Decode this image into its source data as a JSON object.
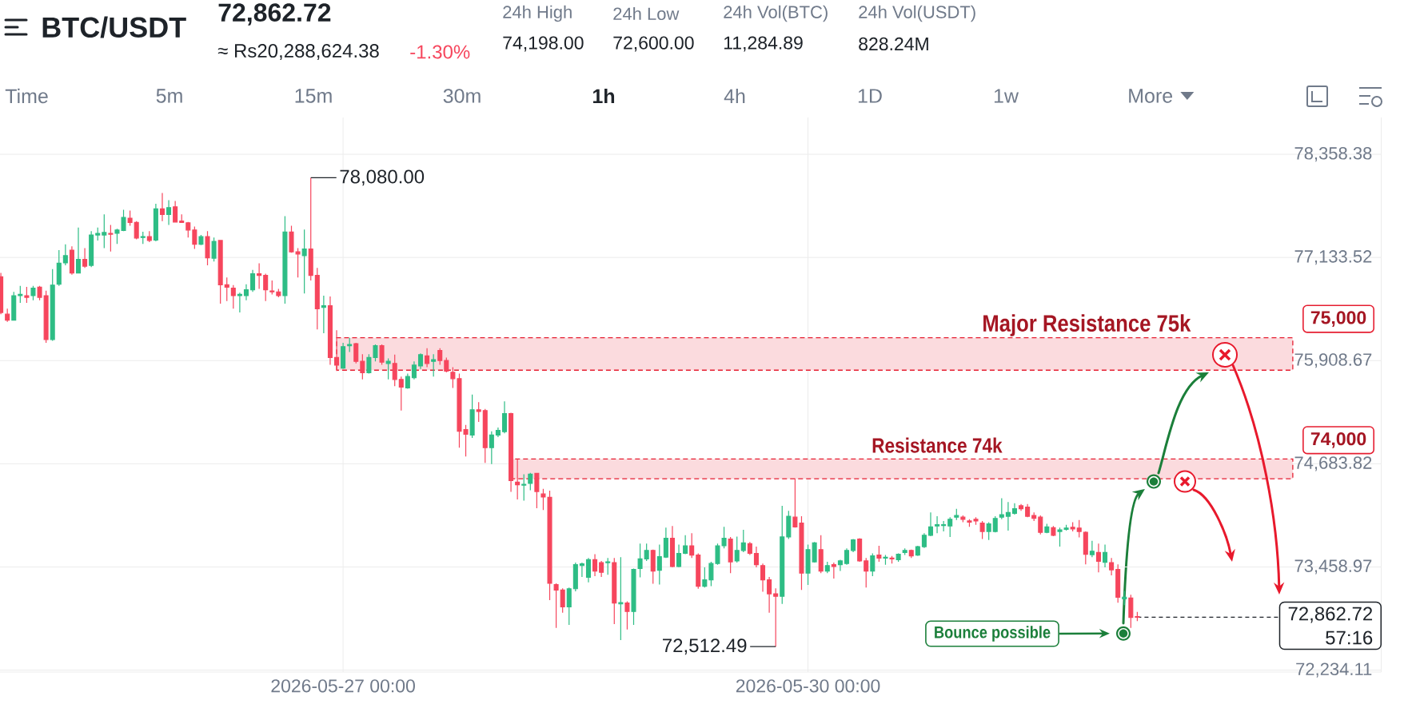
{
  "chart_data": {
    "type": "candlestick",
    "title": "BTC/USDT",
    "x": [
      "2026-05-24T19:00",
      "2026-05-24T20:00",
      "2026-05-24T21:00",
      "2026-05-24T22:00",
      "2026-05-24T23:00",
      "2026-05-25T00:00",
      "2026-05-25T01:00",
      "2026-05-25T02:00",
      "2026-05-25T03:00",
      "2026-05-25T04:00",
      "2026-05-25T05:00",
      "2026-05-25T06:00",
      "2026-05-25T07:00",
      "2026-05-25T08:00",
      "2026-05-25T09:00",
      "2026-05-25T10:00",
      "2026-05-25T11:00",
      "2026-05-25T12:00",
      "2026-05-25T13:00",
      "2026-05-25T14:00",
      "2026-05-25T15:00",
      "2026-05-25T16:00",
      "2026-05-25T17:00",
      "2026-05-25T18:00",
      "2026-05-25T19:00",
      "2026-05-25T20:00",
      "2026-05-25T21:00",
      "2026-05-25T22:00",
      "2026-05-25T23:00",
      "2026-05-26T00:00",
      "2026-05-26T01:00",
      "2026-05-26T02:00",
      "2026-05-26T03:00",
      "2026-05-26T04:00",
      "2026-05-26T05:00",
      "2026-05-26T06:00",
      "2026-05-26T07:00",
      "2026-05-26T08:00",
      "2026-05-26T09:00",
      "2026-05-26T10:00",
      "2026-05-26T11:00",
      "2026-05-26T12:00",
      "2026-05-26T13:00",
      "2026-05-26T14:00",
      "2026-05-26T15:00",
      "2026-05-26T16:00",
      "2026-05-26T17:00",
      "2026-05-26T18:00",
      "2026-05-26T19:00",
      "2026-05-26T20:00",
      "2026-05-26T21:00",
      "2026-05-26T22:00",
      "2026-05-26T23:00",
      "2026-05-27T00:00",
      "2026-05-27T01:00",
      "2026-05-27T02:00",
      "2026-05-27T03:00",
      "2026-05-27T04:00",
      "2026-05-27T05:00",
      "2026-05-27T06:00",
      "2026-05-27T07:00",
      "2026-05-27T08:00",
      "2026-05-27T09:00",
      "2026-05-27T10:00",
      "2026-05-27T11:00",
      "2026-05-27T12:00",
      "2026-05-27T13:00",
      "2026-05-27T14:00",
      "2026-05-27T15:00",
      "2026-05-27T16:00",
      "2026-05-27T17:00",
      "2026-05-27T18:00",
      "2026-05-27T19:00",
      "2026-05-27T20:00",
      "2026-05-27T21:00",
      "2026-05-27T22:00",
      "2026-05-27T23:00",
      "2026-05-28T00:00",
      "2026-05-28T01:00",
      "2026-05-28T02:00",
      "2026-05-28T03:00",
      "2026-05-28T04:00",
      "2026-05-28T05:00",
      "2026-05-28T06:00",
      "2026-05-28T07:00",
      "2026-05-28T08:00",
      "2026-05-28T09:00",
      "2026-05-28T10:00",
      "2026-05-28T11:00",
      "2026-05-28T12:00",
      "2026-05-28T13:00",
      "2026-05-28T14:00",
      "2026-05-28T15:00",
      "2026-05-28T16:00",
      "2026-05-28T17:00",
      "2026-05-28T18:00",
      "2026-05-28T19:00",
      "2026-05-28T20:00",
      "2026-05-28T21:00",
      "2026-05-28T22:00",
      "2026-05-28T23:00",
      "2026-05-29T00:00",
      "2026-05-29T01:00",
      "2026-05-29T02:00",
      "2026-05-29T03:00",
      "2026-05-29T04:00",
      "2026-05-29T05:00",
      "2026-05-29T06:00",
      "2026-05-29T07:00",
      "2026-05-29T08:00",
      "2026-05-29T09:00",
      "2026-05-29T10:00",
      "2026-05-29T11:00",
      "2026-05-29T12:00",
      "2026-05-29T13:00",
      "2026-05-29T14:00",
      "2026-05-29T15:00",
      "2026-05-29T16:00",
      "2026-05-29T17:00",
      "2026-05-29T18:00",
      "2026-05-29T19:00",
      "2026-05-29T20:00",
      "2026-05-29T21:00",
      "2026-05-29T22:00",
      "2026-05-29T23:00",
      "2026-05-30T00:00",
      "2026-05-30T01:00",
      "2026-05-30T02:00",
      "2026-05-30T03:00",
      "2026-05-30T04:00",
      "2026-05-30T05:00",
      "2026-05-30T06:00",
      "2026-05-30T07:00",
      "2026-05-30T08:00",
      "2026-05-30T09:00",
      "2026-05-30T10:00",
      "2026-05-30T11:00",
      "2026-05-30T12:00",
      "2026-05-30T13:00",
      "2026-05-30T14:00",
      "2026-05-30T15:00",
      "2026-05-30T16:00",
      "2026-05-30T17:00",
      "2026-05-30T18:00",
      "2026-05-30T19:00",
      "2026-05-30T20:00",
      "2026-05-30T21:00",
      "2026-05-30T22:00",
      "2026-05-30T23:00",
      "2026-05-31T00:00",
      "2026-05-31T01:00",
      "2026-05-31T02:00",
      "2026-05-31T03:00",
      "2026-05-31T04:00",
      "2026-05-31T05:00",
      "2026-05-31T06:00",
      "2026-05-31T07:00",
      "2026-05-31T08:00",
      "2026-05-31T09:00",
      "2026-05-31T10:00",
      "2026-05-31T11:00",
      "2026-05-31T12:00",
      "2026-05-31T13:00",
      "2026-05-31T14:00",
      "2026-05-31T15:00",
      "2026-05-31T16:00",
      "2026-05-31T17:00",
      "2026-05-31T18:00",
      "2026-05-31T19:00",
      "2026-05-31T20:00",
      "2026-05-31T21:00",
      "2026-05-31T22:00",
      "2026-05-31T23:00",
      "2026-06-01T00:00",
      "2026-06-01T01:00",
      "2026-06-01T02:00",
      "2026-06-01T03:00"
    ],
    "ohlc": [
      [
        76905,
        76950,
        76460,
        76480
      ],
      [
        76460,
        76525,
        76370,
        76390
      ],
      [
        76390,
        76725,
        76390,
        76680
      ],
      [
        76680,
        76795,
        76595,
        76695
      ],
      [
        76680,
        76785,
        76595,
        76660
      ],
      [
        76680,
        76795,
        76625,
        76770
      ],
      [
        76780,
        76795,
        76625,
        76660
      ],
      [
        76680,
        76740,
        76120,
        76160
      ],
      [
        76160,
        76995,
        76145,
        76805
      ],
      [
        76815,
        77220,
        76795,
        77065
      ],
      [
        77070,
        77290,
        77040,
        77155
      ],
      [
        77220,
        77265,
        76930,
        76950
      ],
      [
        76950,
        77490,
        76950,
        77110
      ],
      [
        77110,
        77245,
        77010,
        77030
      ],
      [
        77040,
        77445,
        77020,
        77400
      ],
      [
        77400,
        77490,
        77335,
        77420
      ],
      [
        77400,
        77645,
        77245,
        77430
      ],
      [
        77420,
        77520,
        77205,
        77410
      ],
      [
        77420,
        77475,
        77295,
        77460
      ],
      [
        77455,
        77700,
        77445,
        77610
      ],
      [
        77600,
        77690,
        77510,
        77550
      ],
      [
        77550,
        77565,
        77350,
        77365
      ],
      [
        77370,
        77440,
        77295,
        77380
      ],
      [
        77380,
        77445,
        77315,
        77335
      ],
      [
        77340,
        77770,
        77325,
        77710
      ],
      [
        77710,
        77900,
        77565,
        77645
      ],
      [
        77645,
        77815,
        77520,
        77725
      ],
      [
        77735,
        77805,
        77555,
        77555
      ],
      [
        77565,
        77645,
        77550,
        77550
      ],
      [
        77545,
        77555,
        77370,
        77460
      ],
      [
        77460,
        77500,
        77235,
        77290
      ],
      [
        77290,
        77400,
        77280,
        77380
      ],
      [
        77380,
        77445,
        77040,
        77130
      ],
      [
        77125,
        77370,
        77085,
        77325
      ],
      [
        77335,
        77340,
        76585,
        76810
      ],
      [
        76810,
        76895,
        76615,
        76780
      ],
      [
        76770,
        76805,
        76525,
        76680
      ],
      [
        76680,
        76715,
        76480,
        76695
      ],
      [
        76680,
        76815,
        76625,
        76750
      ],
      [
        76750,
        76985,
        76725,
        76940
      ],
      [
        76940,
        77065,
        76760,
        76920
      ],
      [
        76920,
        76940,
        76615,
        76750
      ],
      [
        76735,
        76860,
        76695,
        76725
      ],
      [
        76725,
        76760,
        76660,
        76680
      ],
      [
        76680,
        77625,
        76585,
        77435
      ],
      [
        77435,
        77510,
        77190,
        77200
      ],
      [
        77200,
        77245,
        76895,
        77175
      ],
      [
        77155,
        77465,
        76705,
        77235
      ],
      [
        77235,
        78080,
        76860,
        76920
      ],
      [
        76920,
        77010,
        76280,
        76525
      ],
      [
        76540,
        76680,
        76235,
        76560
      ],
      [
        76560,
        76670,
        75860,
        75945
      ],
      [
        75945,
        76270,
        75785,
        75855
      ],
      [
        75820,
        76120,
        75810,
        76075
      ],
      [
        76085,
        76180,
        76010,
        76100
      ],
      [
        76110,
        76120,
        75875,
        75900
      ],
      [
        75900,
        75985,
        75685,
        75765
      ],
      [
        75765,
        75985,
        75755,
        75945
      ],
      [
        75945,
        76100,
        75900,
        76085
      ],
      [
        76085,
        76100,
        75860,
        75890
      ],
      [
        75875,
        75935,
        75685,
        75900
      ],
      [
        75875,
        75980,
        75605,
        75685
      ],
      [
        75685,
        75720,
        75315,
        75595
      ],
      [
        75585,
        75755,
        75575,
        75720
      ],
      [
        75705,
        75900,
        75685,
        75855
      ],
      [
        75845,
        75995,
        75810,
        75980
      ],
      [
        75965,
        76055,
        75830,
        75875
      ],
      [
        75900,
        75985,
        75720,
        75920
      ],
      [
        76030,
        76055,
        75860,
        75910
      ],
      [
        75910,
        75945,
        75770,
        75785
      ],
      [
        75770,
        75830,
        75585,
        75695
      ],
      [
        75695,
        75755,
        74875,
        75070
      ],
      [
        75090,
        75145,
        74770,
        75035
      ],
      [
        75025,
        75505,
        74990,
        75325
      ],
      [
        75325,
        75415,
        75180,
        75305
      ],
      [
        75315,
        75335,
        74695,
        74875
      ],
      [
        74875,
        75070,
        74680,
        75025
      ],
      [
        75025,
        75115,
        75000,
        75080
      ],
      [
        75065,
        75425,
        75045,
        75280
      ],
      [
        75280,
        75290,
        74350,
        74485
      ],
      [
        74465,
        74740,
        74260,
        74435
      ],
      [
        74430,
        74560,
        74245,
        74440
      ],
      [
        74450,
        74575,
        74370,
        74560
      ],
      [
        74570,
        74575,
        74155,
        74355
      ],
      [
        74325,
        74385,
        74135,
        74290
      ],
      [
        74285,
        74365,
        73065,
        73265
      ],
      [
        73250,
        73265,
        72735,
        73185
      ],
      [
        73185,
        73205,
        72915,
        72985
      ],
      [
        72985,
        73215,
        72770,
        73200
      ],
      [
        73200,
        73510,
        73170,
        73485
      ],
      [
        73475,
        73510,
        73340,
        73495
      ],
      [
        73335,
        73565,
        73275,
        73545
      ],
      [
        73545,
        73610,
        73350,
        73410
      ],
      [
        73510,
        73530,
        73340,
        73395
      ],
      [
        73510,
        73565,
        73365,
        73520
      ],
      [
        73510,
        73565,
        72780,
        73030
      ],
      [
        73020,
        73575,
        72590,
        73035
      ],
      [
        73030,
        73050,
        72715,
        72930
      ],
      [
        72930,
        73440,
        72770,
        73430
      ],
      [
        73440,
        73735,
        73335,
        73555
      ],
      [
        73555,
        73735,
        73530,
        73655
      ],
      [
        73655,
        73665,
        73260,
        73410
      ],
      [
        73420,
        73725,
        73250,
        73580
      ],
      [
        73575,
        73925,
        73565,
        73800
      ],
      [
        73800,
        73945,
        73455,
        73465
      ],
      [
        73465,
        73725,
        73455,
        73620
      ],
      [
        73620,
        73835,
        73610,
        73710
      ],
      [
        73710,
        73860,
        73565,
        73600
      ],
      [
        73600,
        73620,
        73200,
        73230
      ],
      [
        73230,
        73455,
        73215,
        73305
      ],
      [
        73305,
        73520,
        73230,
        73500
      ],
      [
        73500,
        73735,
        73485,
        73710
      ],
      [
        73710,
        73935,
        73680,
        73800
      ],
      [
        73790,
        73815,
        73385,
        73520
      ],
      [
        73530,
        73820,
        73510,
        73655
      ],
      [
        73655,
        73900,
        73635,
        73745
      ],
      [
        73735,
        73755,
        73600,
        73620
      ],
      [
        73620,
        73700,
        73455,
        73485
      ],
      [
        73475,
        73500,
        73165,
        73305
      ],
      [
        73305,
        73340,
        72915,
        73140
      ],
      [
        73140,
        73205,
        72512.49,
        73110
      ],
      [
        73110,
        74185,
        73020,
        73815
      ],
      [
        73815,
        74125,
        73790,
        74060
      ],
      [
        74050,
        74510,
        73925,
        73935
      ],
      [
        73980,
        74060,
        73185,
        73385
      ],
      [
        73385,
        73725,
        73245,
        73665
      ],
      [
        73520,
        73755,
        73510,
        73745
      ],
      [
        73665,
        73835,
        73385,
        73410
      ],
      [
        73410,
        73520,
        73385,
        73475
      ],
      [
        73485,
        73510,
        73320,
        73465
      ],
      [
        73485,
        73545,
        73410,
        73530
      ],
      [
        73500,
        73680,
        73485,
        73655
      ],
      [
        73655,
        73790,
        73635,
        73780
      ],
      [
        73790,
        73800,
        73520,
        73530
      ],
      [
        73530,
        73565,
        73215,
        73410
      ],
      [
        73410,
        73620,
        73350,
        73590
      ],
      [
        73600,
        73710,
        73520,
        73565
      ],
      [
        73565,
        73600,
        73485,
        73575
      ],
      [
        73565,
        73590,
        73500,
        73555
      ],
      [
        73545,
        73620,
        73520,
        73610
      ],
      [
        73630,
        73680,
        73600,
        73655
      ],
      [
        73655,
        73665,
        73565,
        73590
      ],
      [
        73600,
        73710,
        73590,
        73700
      ],
      [
        73700,
        73860,
        73685,
        73835
      ],
      [
        73835,
        74105,
        73825,
        73935
      ],
      [
        73945,
        74060,
        73860,
        73960
      ],
      [
        73950,
        74005,
        73880,
        73960
      ],
      [
        73945,
        74050,
        73815,
        74025
      ],
      [
        74050,
        74150,
        74015,
        74070
      ],
      [
        74050,
        74070,
        73990,
        74025
      ],
      [
        74005,
        74025,
        73935,
        73990
      ],
      [
        74025,
        74050,
        73960,
        74005
      ],
      [
        73980,
        74005,
        73790,
        73880
      ],
      [
        73880,
        73990,
        73780,
        73970
      ],
      [
        73880,
        74060,
        73870,
        74035
      ],
      [
        74050,
        74275,
        74025,
        74080
      ],
      [
        74060,
        74230,
        73890,
        74105
      ],
      [
        74095,
        74215,
        74080,
        74150
      ],
      [
        74185,
        74205,
        74125,
        74150
      ],
      [
        74170,
        74205,
        74050,
        74060
      ],
      [
        74070,
        74105,
        74005,
        74035
      ],
      [
        74050,
        74070,
        73845,
        73870
      ],
      [
        73870,
        73970,
        73860,
        73935
      ],
      [
        73925,
        73945,
        73825,
        73835
      ],
      [
        73880,
        73925,
        73700,
        73900
      ],
      [
        73905,
        73960,
        73890,
        73920
      ],
      [
        73930,
        73990,
        73880,
        73910
      ],
      [
        73920,
        74015,
        73810,
        73880
      ],
      [
        73870,
        73880,
        73490,
        73610
      ],
      [
        73605,
        73770,
        73575,
        73645
      ],
      [
        73630,
        73735,
        73395,
        73525
      ],
      [
        73515,
        73725,
        73455,
        73630
      ],
      [
        73510,
        73565,
        73360,
        73425
      ],
      [
        73430,
        73490,
        73035,
        73100
      ],
      [
        73080,
        73175,
        73005,
        73100
      ],
      [
        73090,
        73130,
        72735,
        72860
      ],
      [
        72870,
        72925,
        72815,
        72862.72
      ]
    ],
    "colors": [
      "#f6465d",
      "#f6465d",
      "#2ebd85",
      "#2ebd85",
      "#f6465d",
      "#2ebd85",
      "#f6465d",
      "#f6465d",
      "#2ebd85",
      "#2ebd85",
      "#2ebd85",
      "#f6465d",
      "#2ebd85",
      "#f6465d",
      "#2ebd85",
      "#2ebd85",
      "#2ebd85",
      "#f6465d",
      "#2ebd85",
      "#2ebd85",
      "#f6465d",
      "#f6465d",
      "#2ebd85",
      "#f6465d",
      "#2ebd85",
      "#f6465d",
      "#2ebd85",
      "#f6465d",
      "#f6465d",
      "#f6465d",
      "#f6465d",
      "#2ebd85",
      "#f6465d",
      "#2ebd85",
      "#f6465d",
      "#f6465d",
      "#f6465d",
      "#2ebd85",
      "#2ebd85",
      "#2ebd85",
      "#f6465d",
      "#f6465d",
      "#f6465d",
      "#f6465d",
      "#2ebd85",
      "#f6465d",
      "#f6465d",
      "#2ebd85",
      "#f6465d",
      "#f6465d",
      "#2ebd85",
      "#f6465d",
      "#f6465d",
      "#2ebd85",
      "#2ebd85",
      "#f6465d",
      "#f6465d",
      "#2ebd85",
      "#2ebd85",
      "#f6465d",
      "#2ebd85",
      "#f6465d",
      "#f6465d",
      "#2ebd85",
      "#2ebd85",
      "#2ebd85",
      "#f6465d",
      "#2ebd85",
      "#f6465d",
      "#f6465d",
      "#f6465d",
      "#f6465d",
      "#f6465d",
      "#2ebd85",
      "#f6465d",
      "#f6465d",
      "#2ebd85",
      "#2ebd85",
      "#2ebd85",
      "#f6465d",
      "#f6465d",
      "#2ebd85",
      "#2ebd85",
      "#f6465d",
      "#f6465d",
      "#f6465d",
      "#f6465d",
      "#f6465d",
      "#2ebd85",
      "#2ebd85",
      "#2ebd85",
      "#2ebd85",
      "#f6465d",
      "#f6465d",
      "#2ebd85",
      "#f6465d",
      "#2ebd85",
      "#f6465d",
      "#2ebd85",
      "#2ebd85",
      "#2ebd85",
      "#f6465d",
      "#2ebd85",
      "#2ebd85",
      "#f6465d",
      "#2ebd85",
      "#2ebd85",
      "#f6465d",
      "#f6465d",
      "#2ebd85",
      "#2ebd85",
      "#2ebd85",
      "#2ebd85",
      "#f6465d",
      "#2ebd85",
      "#2ebd85",
      "#f6465d",
      "#f6465d",
      "#f6465d",
      "#f6465d",
      "#f6465d",
      "#2ebd85",
      "#2ebd85",
      "#f6465d",
      "#f6465d",
      "#2ebd85",
      "#2ebd85",
      "#f6465d",
      "#2ebd85",
      "#f6465d",
      "#2ebd85",
      "#2ebd85",
      "#2ebd85",
      "#f6465d",
      "#f6465d",
      "#2ebd85",
      "#f6465d",
      "#2ebd85",
      "#f6465d",
      "#2ebd85",
      "#2ebd85",
      "#f6465d",
      "#2ebd85",
      "#2ebd85",
      "#2ebd85",
      "#2ebd85",
      "#2ebd85",
      "#2ebd85",
      "#2ebd85",
      "#f6465d",
      "#f6465d",
      "#f6465d",
      "#f6465d",
      "#2ebd85",
      "#2ebd85",
      "#2ebd85",
      "#2ebd85",
      "#2ebd85",
      "#f6465d",
      "#f6465d",
      "#f6465d",
      "#f6465d",
      "#2ebd85",
      "#f6465d",
      "#2ebd85",
      "#2ebd85",
      "#f6465d",
      "#f6465d",
      "#f6465d",
      "#2ebd85",
      "#f6465d",
      "#2ebd85",
      "#f6465d",
      "#f6465d",
      "#2ebd85",
      "#f6465d",
      "#f6465d"
    ],
    "xlim": [
      "2026-05-24T18:52",
      "2026-06-02T16:47"
    ],
    "ylim": [
      72211,
      78796
    ],
    "xticks": [
      {
        "value": "2026-05-27T00:00",
        "label": "2026-05-27 00:00"
      },
      {
        "value": "2026-05-30T00:00",
        "label": "2026-05-30 00:00"
      }
    ],
    "yticks": [
      {
        "value": 78358.38,
        "label": "78,358.38"
      },
      {
        "value": 77133.52,
        "label": "77,133.52"
      },
      {
        "value": 75908.67,
        "label": "75,908.67"
      },
      {
        "value": 74683.82,
        "label": "74,683.82"
      },
      {
        "value": 73458.97,
        "label": "73,458.97"
      },
      {
        "value": 72234.11,
        "label": "72,234.11"
      }
    ],
    "grid": true,
    "bands": [
      {
        "axis": "y",
        "from": 75795,
        "to": 76180,
        "label": "Major Resistance 75k",
        "color": "#fbdbde"
      },
      {
        "axis": "y",
        "from": 74505,
        "to": 74740,
        "label": "Resistance 74k",
        "color": "#fbdbde"
      }
    ],
    "ref_lines": [
      {
        "axis": "y",
        "value": 72862.72,
        "label": "72,862.72",
        "color": "#1e2329",
        "line_style": "dashed"
      }
    ],
    "annotations": [
      "72,862.72",
      "≈ Rs20,288,624.38",
      "-1.30%",
      "24h High",
      "74,198.00",
      "24h Low",
      "72,600.00",
      "24h Vol(BTC)",
      "11,284.89",
      "24h Vol(USDT)",
      "828.24M",
      "Time",
      "5m",
      "15m",
      "30m",
      "1h",
      "4h",
      "1D",
      "1w",
      "More",
      {
        "text": "78,080.00",
        "x": "2026-05-26T19:00",
        "y": 78080
      },
      {
        "text": "72,512.49",
        "x": "2026-05-29T19:00",
        "y": 72512.49
      },
      "75,000",
      "74,000",
      "Bounce possible",
      "57:16"
    ]
  }
}
